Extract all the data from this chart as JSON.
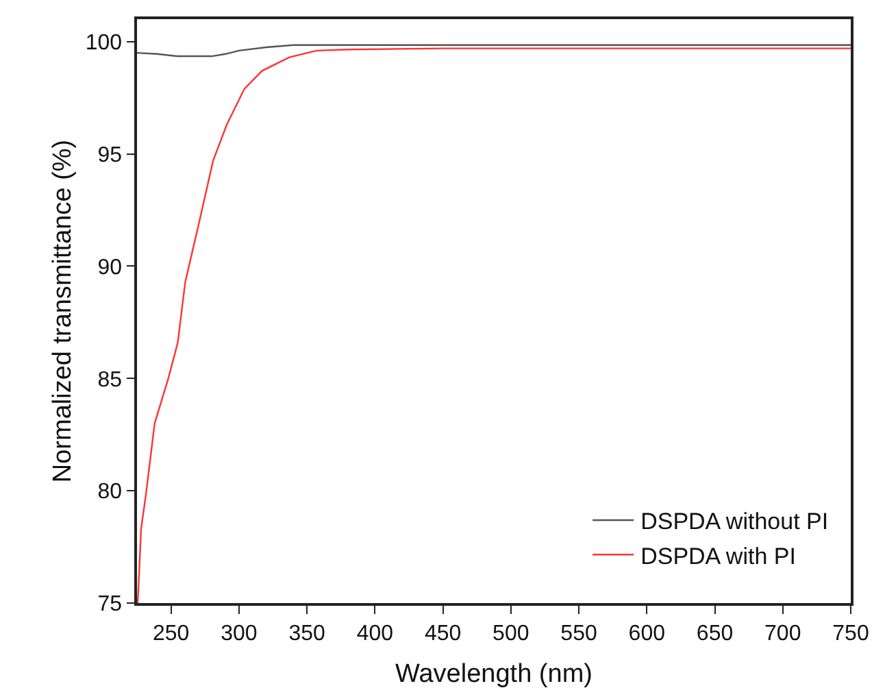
{
  "chart_data": {
    "type": "line",
    "xlabel": "Wavelength (nm)",
    "ylabel": "Normalized transmittance (%)",
    "xlim": [
      225,
      750
    ],
    "xticks": [
      250,
      300,
      350,
      400,
      450,
      500,
      550,
      600,
      650,
      700,
      750
    ],
    "ylim": [
      75,
      101
    ],
    "yticks": [
      75,
      80,
      85,
      90,
      95,
      100
    ],
    "grid": false,
    "legend": "bottom right",
    "marker": "none",
    "line_style": "solid",
    "series": [
      {
        "name": "DSPDA without PI",
        "color": "#555555",
        "x": [
          225,
          240,
          255,
          280,
          290,
          300,
          320,
          340,
          360,
          400,
          500,
          600,
          750
        ],
        "values": [
          99.5,
          99.45,
          99.35,
          99.35,
          99.45,
          99.6,
          99.75,
          99.85,
          99.85,
          99.85,
          99.85,
          99.85,
          99.85
        ]
      },
      {
        "name": "DSPDA with PI",
        "color": "#ff3333",
        "x": [
          225.5,
          226.7,
          228,
          231.5,
          238,
          248,
          255,
          260.5,
          270.5,
          281,
          291,
          304,
          317,
          337,
          357,
          380,
          450,
          550,
          650,
          750
        ],
        "values": [
          75,
          76.5,
          78.3,
          79.8,
          83,
          85,
          86.6,
          89.3,
          91.9,
          94.7,
          96.3,
          97.9,
          98.7,
          99.3,
          99.6,
          99.65,
          99.7,
          99.7,
          99.7,
          99.7
        ]
      }
    ]
  }
}
